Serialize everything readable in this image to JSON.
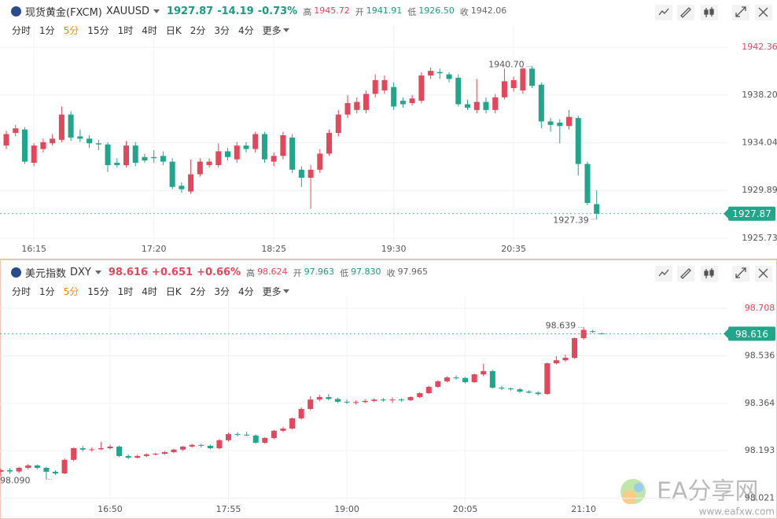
{
  "chart_data": [
    {
      "type": "candlestick",
      "title": "现货黄金(FXCM)",
      "symbol": "XAUUSD",
      "quote": {
        "last": "1927.87",
        "change": "-14.19",
        "change_pct": "-0.73%"
      },
      "stats": [
        {
          "label": "高",
          "value": "1945.72"
        },
        {
          "label": "开",
          "value": "1941.91"
        },
        {
          "label": "低",
          "value": "1926.50"
        },
        {
          "label": "收",
          "value": "1942.06"
        }
      ],
      "intervals": [
        "分时",
        "1分",
        "5分",
        "15分",
        "1时",
        "4时",
        "日K",
        "2分",
        "3分",
        "4分",
        "更多"
      ],
      "active_interval": 2,
      "categories": [
        null,
        null,
        null,
        "16:15",
        null,
        null,
        null,
        null,
        null,
        null,
        null,
        null,
        null,
        null,
        null,
        null,
        "17:20",
        null,
        null,
        null,
        null,
        null,
        null,
        null,
        null,
        null,
        null,
        null,
        null,
        "18:25",
        null,
        null,
        null,
        null,
        null,
        null,
        null,
        null,
        null,
        null,
        null,
        null,
        "19:30",
        null,
        null,
        null,
        null,
        null,
        null,
        null,
        null,
        null,
        null,
        null,
        null,
        "20:35",
        null,
        null,
        null,
        null,
        null,
        null,
        null,
        null,
        null
      ],
      "open": [
        1933.8,
        1934.9,
        1935.2,
        1932.3,
        1933.5,
        1934.0,
        1934.3,
        1936.5,
        1934.6,
        1934.4,
        1934.0,
        1933.9,
        1932.3,
        1932.1,
        1933.8,
        1932.8,
        1932.8,
        1932.9,
        1932.4,
        1930.3,
        1929.8,
        1931.3,
        1932.1,
        1932.1,
        1933.3,
        1932.6,
        1933.8,
        1933.5,
        1934.8,
        1932.4,
        1932.9,
        1934.5,
        1931.7,
        1931.0,
        1931.7,
        1933.1,
        1934.9,
        1936.5,
        1936.9,
        1936.9,
        1938.3,
        1938.6,
        1938.9,
        1937.7,
        1937.5,
        1937.7,
        1939.9,
        1940.2,
        1940.0,
        1939.7,
        1937.4,
        1936.9,
        1937.6,
        1936.9,
        1938.0,
        1938.8,
        1938.6,
        1940.5,
        1939.1,
        1935.9,
        1935.8,
        1935.5,
        1936.2,
        1932.2,
        1928.7
      ],
      "high": [
        1935.1,
        1935.6,
        1935.4,
        1934.0,
        1934.4,
        1934.8,
        1937.2,
        1936.8,
        1935.2,
        1934.7,
        1934.3,
        1934.1,
        1932.7,
        1934.2,
        1934.1,
        1933.1,
        1933.4,
        1933.3,
        1932.7,
        1930.6,
        1932.6,
        1932.7,
        1932.7,
        1934.0,
        1933.6,
        1934.1,
        1934.1,
        1935.0,
        1935.0,
        1933.2,
        1935.0,
        1934.8,
        1932.0,
        1932.1,
        1933.5,
        1935.2,
        1936.9,
        1938.2,
        1938.0,
        1938.6,
        1940.0,
        1939.9,
        1939.3,
        1938.0,
        1938.2,
        1940.2,
        1940.6,
        1940.5,
        1940.2,
        1940.0,
        1937.8,
        1939.6,
        1938.0,
        1938.3,
        1940.5,
        1939.8,
        1940.6,
        1940.7,
        1939.3,
        1936.2,
        1936.1,
        1936.9,
        1936.4,
        1932.4,
        1929.9
      ],
      "low": [
        1933.5,
        1934.6,
        1932.2,
        1932.0,
        1933.2,
        1933.8,
        1934.1,
        1934.2,
        1934.1,
        1933.6,
        1933.4,
        1931.5,
        1931.9,
        1931.9,
        1932.0,
        1932.3,
        1932.3,
        1932.1,
        1930.0,
        1929.7,
        1929.6,
        1931.1,
        1931.9,
        1931.9,
        1932.5,
        1932.3,
        1933.2,
        1933.2,
        1932.3,
        1932.0,
        1932.6,
        1931.4,
        1930.2,
        1928.3,
        1931.4,
        1932.9,
        1934.6,
        1936.2,
        1936.6,
        1936.6,
        1938.0,
        1938.3,
        1936.9,
        1937.1,
        1937.3,
        1937.5,
        1939.6,
        1939.6,
        1939.3,
        1937.2,
        1936.9,
        1936.6,
        1936.6,
        1936.6,
        1937.8,
        1938.5,
        1938.3,
        1938.8,
        1935.3,
        1935.0,
        1934.0,
        1935.2,
        1931.2,
        1928.6,
        1927.39
      ],
      "close": [
        1934.8,
        1935.3,
        1932.4,
        1933.8,
        1934.1,
        1934.4,
        1936.5,
        1934.5,
        1934.4,
        1934.0,
        1933.9,
        1932.1,
        1932.1,
        1933.8,
        1932.3,
        1932.5,
        1932.7,
        1932.4,
        1930.2,
        1930.0,
        1931.3,
        1932.4,
        1932.4,
        1933.3,
        1932.8,
        1933.8,
        1933.5,
        1934.8,
        1932.6,
        1932.9,
        1934.7,
        1931.7,
        1931.0,
        1931.7,
        1933.1,
        1934.9,
        1936.5,
        1937.5,
        1937.6,
        1938.3,
        1939.5,
        1939.5,
        1937.2,
        1937.4,
        1937.9,
        1939.9,
        1940.3,
        1940.1,
        1939.6,
        1937.4,
        1937.1,
        1937.6,
        1936.9,
        1938.0,
        1939.4,
        1939.5,
        1940.5,
        1939.0,
        1935.9,
        1935.6,
        1935.5,
        1936.3,
        1932.2,
        1928.8,
        1927.87
      ],
      "up_color": "#e2475b",
      "down_color": "#1fa68b",
      "ylim": [
        1925.25,
        1943.6
      ],
      "yticks": [
        1942.36,
        {
          "value": 1938.2,
          "label": "1938.20"
        },
        1934.04,
        1929.89,
        1925.73
      ],
      "last_price": 1927.87,
      "last_price_color": "#1fa68b",
      "max_marker": {
        "value": 1940.7,
        "label": "1940.70"
      },
      "min_marker": 1927.39,
      "grid": true
    },
    {
      "type": "candlestick",
      "title": "美元指数",
      "symbol": "DXY",
      "quote": {
        "last": "98.616",
        "change": "+0.651",
        "change_pct": "+0.66%"
      },
      "stats": [
        {
          "label": "高",
          "value": "98.624"
        },
        {
          "label": "开",
          "value": "97.963"
        },
        {
          "label": "低",
          "value": "97.830"
        },
        {
          "label": "收",
          "value": "97.965"
        }
      ],
      "intervals": [
        "分时",
        "1分",
        "5分",
        "15分",
        "1时",
        "4时",
        "日K",
        "2分",
        "3分",
        "4分",
        "更多"
      ],
      "active_interval": 2,
      "categories": [
        null,
        null,
        null,
        null,
        null,
        null,
        null,
        null,
        null,
        null,
        null,
        null,
        "16:50",
        null,
        null,
        null,
        null,
        null,
        null,
        null,
        null,
        null,
        null,
        null,
        null,
        "17:55",
        null,
        null,
        null,
        null,
        null,
        null,
        null,
        null,
        null,
        null,
        null,
        null,
        "19:00",
        null,
        null,
        null,
        null,
        null,
        null,
        null,
        null,
        null,
        null,
        null,
        null,
        "20:05",
        null,
        null,
        null,
        null,
        null,
        null,
        null,
        null,
        null,
        null,
        null,
        null,
        "21:10",
        null,
        null
      ],
      "open": [
        98.117,
        98.123,
        98.118,
        98.131,
        98.14,
        98.131,
        98.117,
        98.111,
        98.16,
        98.202,
        98.196,
        98.198,
        98.202,
        98.208,
        98.174,
        98.168,
        98.174,
        98.18,
        98.182,
        98.188,
        98.197,
        98.208,
        98.214,
        98.211,
        98.202,
        98.231,
        98.253,
        98.251,
        98.248,
        98.222,
        98.239,
        98.265,
        98.273,
        98.31,
        98.344,
        98.378,
        98.387,
        98.38,
        98.37,
        98.367,
        98.369,
        98.373,
        98.378,
        98.375,
        98.378,
        98.376,
        98.387,
        98.401,
        98.424,
        98.444,
        98.458,
        98.456,
        98.441,
        98.469,
        98.481,
        98.421,
        98.418,
        98.415,
        98.407,
        98.403,
        98.398,
        98.509,
        98.52,
        98.529,
        98.6,
        98.625,
        98.617
      ],
      "high": [
        98.128,
        98.13,
        98.135,
        98.145,
        98.143,
        98.135,
        98.122,
        98.165,
        98.205,
        98.21,
        98.205,
        98.225,
        98.215,
        98.212,
        98.18,
        98.178,
        98.183,
        98.186,
        98.192,
        98.2,
        98.21,
        98.218,
        98.218,
        98.215,
        98.235,
        98.258,
        98.26,
        98.262,
        98.252,
        98.242,
        98.268,
        98.28,
        98.313,
        98.35,
        98.39,
        98.395,
        98.398,
        98.385,
        98.378,
        98.375,
        98.38,
        98.382,
        98.384,
        98.386,
        98.382,
        98.39,
        98.405,
        98.428,
        98.448,
        98.462,
        98.465,
        98.46,
        98.472,
        98.508,
        98.485,
        98.428,
        98.422,
        98.42,
        98.412,
        98.408,
        98.512,
        98.535,
        98.54,
        98.602,
        98.639,
        98.63,
        98.62
      ],
      "low": [
        98.1,
        98.11,
        98.112,
        98.125,
        98.126,
        98.09,
        98.105,
        98.108,
        98.155,
        98.19,
        98.19,
        98.195,
        98.198,
        98.17,
        98.162,
        98.165,
        98.17,
        98.176,
        98.178,
        98.184,
        98.192,
        98.204,
        98.205,
        98.198,
        98.198,
        98.226,
        98.245,
        98.246,
        98.218,
        98.218,
        98.235,
        98.26,
        98.27,
        98.305,
        98.34,
        98.372,
        98.375,
        98.365,
        98.362,
        98.36,
        98.365,
        98.368,
        98.37,
        98.366,
        98.37,
        98.372,
        98.383,
        98.398,
        98.42,
        98.44,
        98.45,
        98.436,
        98.438,
        98.462,
        98.418,
        98.412,
        98.41,
        98.402,
        98.4,
        98.392,
        98.395,
        98.505,
        98.515,
        98.525,
        98.595,
        98.618,
        98.614
      ],
      "close": [
        98.123,
        98.118,
        98.131,
        98.14,
        98.131,
        98.117,
        98.111,
        98.16,
        98.202,
        98.197,
        98.198,
        98.202,
        98.208,
        98.174,
        98.168,
        98.174,
        98.18,
        98.182,
        98.188,
        98.197,
        98.208,
        98.214,
        98.211,
        98.202,
        98.231,
        98.253,
        98.251,
        98.248,
        98.222,
        98.239,
        98.265,
        98.273,
        98.31,
        98.344,
        98.378,
        98.387,
        98.38,
        98.37,
        98.367,
        98.369,
        98.373,
        98.378,
        98.375,
        98.378,
        98.376,
        98.387,
        98.401,
        98.424,
        98.444,
        98.458,
        98.456,
        98.441,
        98.469,
        98.481,
        98.421,
        98.418,
        98.415,
        98.407,
        98.403,
        98.398,
        98.509,
        98.52,
        98.529,
        98.6,
        98.63,
        98.622,
        98.616
      ],
      "up_color": "#e2475b",
      "down_color": "#1fa68b",
      "ylim": [
        98.003,
        98.728
      ],
      "yticks": [
        98.708,
        98.536,
        98.364,
        98.193,
        98.021
      ],
      "last_price": 98.616,
      "last_price_color": "#1fa68b",
      "max_marker": 98.639,
      "min_marker": {
        "value": 98.09,
        "label": "98.090"
      },
      "grid": true
    }
  ],
  "watermark": {
    "text": "EA分享网",
    "url": "www.eafxw.com"
  }
}
